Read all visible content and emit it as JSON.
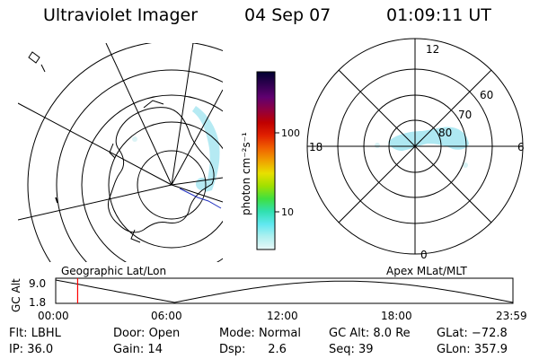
{
  "header": {
    "title": "Ultraviolet Imager",
    "date": "04 Sep 07",
    "time": "01:09:11 UT"
  },
  "left_panel": {
    "caption": "Geographic Lat/Lon"
  },
  "right_panel": {
    "caption": "Apex MLat/MLT",
    "mlt_labels": [
      "12",
      "18",
      "6",
      "0"
    ],
    "mlat_labels": [
      "60",
      "70",
      "80"
    ]
  },
  "colorbar": {
    "unit_label": "photon cm⁻²s⁻¹",
    "tick_labels": [
      "100",
      "10"
    ],
    "colors": [
      "#000030",
      "#300050",
      "#600070",
      "#900040",
      "#c00000",
      "#e02000",
      "#f06000",
      "#f0a000",
      "#e8e000",
      "#a0e000",
      "#40e040",
      "#30e0b0",
      "#60e8f0",
      "#b0f0f0",
      "#e8f8f8"
    ]
  },
  "altitude_plot": {
    "ylabel": "GC Alt",
    "y_ticks": [
      "9.0",
      "1.8"
    ],
    "x_ticks": [
      "00:00",
      "06:00",
      "12:00",
      "18:00",
      "23:59"
    ],
    "current_time_fraction": 0.048,
    "curve_color": "#000000",
    "marker_color": "#ff0000"
  },
  "info": {
    "row1": [
      {
        "key": "Flt:",
        "value": "LBHL"
      },
      {
        "key": "Door:",
        "value": "Open"
      },
      {
        "key": "Mode:",
        "value": "Normal"
      },
      {
        "key": "GC Alt:",
        "value": "8.0 Re"
      },
      {
        "key": "GLat:",
        "value": "−72.8"
      }
    ],
    "row2": [
      {
        "key": "IP:",
        "value": "36.0"
      },
      {
        "key": "Gain:",
        "value": "14"
      },
      {
        "key": "Dsp:",
        "value": "2.6"
      },
      {
        "key": "Seq:",
        "value": "39"
      },
      {
        "key": "GLon:",
        "value": "357.9"
      }
    ]
  },
  "colors": {
    "aurora": "#aee8f2",
    "lines": "#000000",
    "coast_blue": "#2030c0"
  }
}
